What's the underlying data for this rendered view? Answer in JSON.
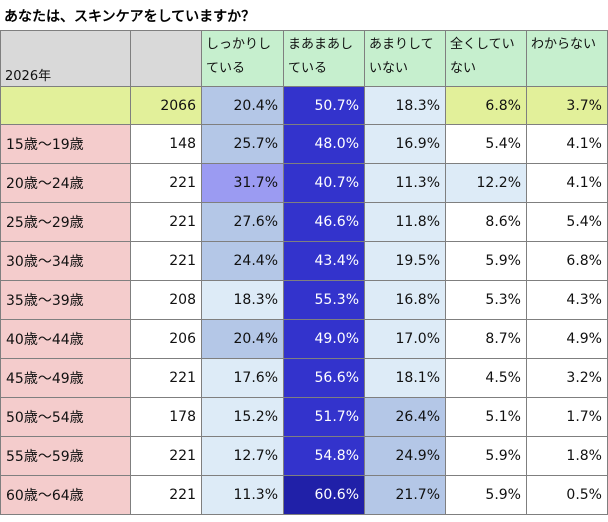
{
  "title": "あなたは、スキンケアをしていますか？",
  "chart_data": {
    "type": "table",
    "corner_label": "2026年",
    "columns": [
      "しっかりしている",
      "まあまあしている",
      "あまりしていない",
      "全くしていない",
      "わからない"
    ],
    "column_lines": [
      [
        "しっかりし",
        "ている"
      ],
      [
        "まあまあし",
        "ている"
      ],
      [
        "あまりして",
        "いない"
      ],
      [
        "全くしてい",
        "ない"
      ],
      [
        "わからない"
      ]
    ],
    "total": {
      "n": "2066",
      "values": [
        20.4,
        50.7,
        18.3,
        6.8,
        3.7
      ],
      "labels": [
        "20.4%",
        "50.7%",
        "18.3%",
        "6.8%",
        "3.7%"
      ]
    },
    "rows": [
      {
        "age": "15歳～19歳",
        "n": "148",
        "values": [
          25.7,
          48.0,
          16.9,
          5.4,
          4.1
        ],
        "labels": [
          "25.7%",
          "48.0%",
          "16.9%",
          "5.4%",
          "4.1%"
        ]
      },
      {
        "age": "20歳～24歳",
        "n": "221",
        "values": [
          31.7,
          40.7,
          11.3,
          12.2,
          4.1
        ],
        "labels": [
          "31.7%",
          "40.7%",
          "11.3%",
          "12.2%",
          "4.1%"
        ]
      },
      {
        "age": "25歳～29歳",
        "n": "221",
        "values": [
          27.6,
          46.6,
          11.8,
          8.6,
          5.4
        ],
        "labels": [
          "27.6%",
          "46.6%",
          "11.8%",
          "8.6%",
          "5.4%"
        ]
      },
      {
        "age": "30歳～34歳",
        "n": "221",
        "values": [
          24.4,
          43.4,
          19.5,
          5.9,
          6.8
        ],
        "labels": [
          "24.4%",
          "43.4%",
          "19.5%",
          "5.9%",
          "6.8%"
        ]
      },
      {
        "age": "35歳～39歳",
        "n": "208",
        "values": [
          18.3,
          55.3,
          16.8,
          5.3,
          4.3
        ],
        "labels": [
          "18.3%",
          "55.3%",
          "16.8%",
          "5.3%",
          "4.3%"
        ]
      },
      {
        "age": "40歳～44歳",
        "n": "206",
        "values": [
          20.4,
          49.0,
          17.0,
          8.7,
          4.9
        ],
        "labels": [
          "20.4%",
          "49.0%",
          "17.0%",
          "8.7%",
          "4.9%"
        ]
      },
      {
        "age": "45歳～49歳",
        "n": "221",
        "values": [
          17.6,
          56.6,
          18.1,
          4.5,
          3.2
        ],
        "labels": [
          "17.6%",
          "56.6%",
          "18.1%",
          "4.5%",
          "3.2%"
        ]
      },
      {
        "age": "50歳～54歳",
        "n": "178",
        "values": [
          15.2,
          51.7,
          26.4,
          5.1,
          1.7
        ],
        "labels": [
          "15.2%",
          "51.7%",
          "26.4%",
          "5.1%",
          "1.7%"
        ]
      },
      {
        "age": "55歳～59歳",
        "n": "221",
        "values": [
          12.7,
          54.8,
          24.9,
          5.9,
          1.8
        ],
        "labels": [
          "12.7%",
          "54.8%",
          "24.9%",
          "5.9%",
          "1.8%"
        ]
      },
      {
        "age": "60歳～64歳",
        "n": "221",
        "values": [
          11.3,
          60.6,
          21.7,
          5.9,
          0.5
        ],
        "labels": [
          "11.3%",
          "60.6%",
          "21.7%",
          "5.9%",
          "0.5%"
        ]
      }
    ],
    "colors": {
      "header_gray": "#d9d9d9",
      "header_green": "#c6efce",
      "total_yellow": "#e2f09a",
      "age_pink": "#f4cccc",
      "heat_light": "#ddebf7",
      "heat_mid": "#b4c7e7",
      "heat_violet": "#9b9bf2",
      "heat_dark": "#3333cc",
      "heat_darkest": "#2020a8"
    }
  }
}
